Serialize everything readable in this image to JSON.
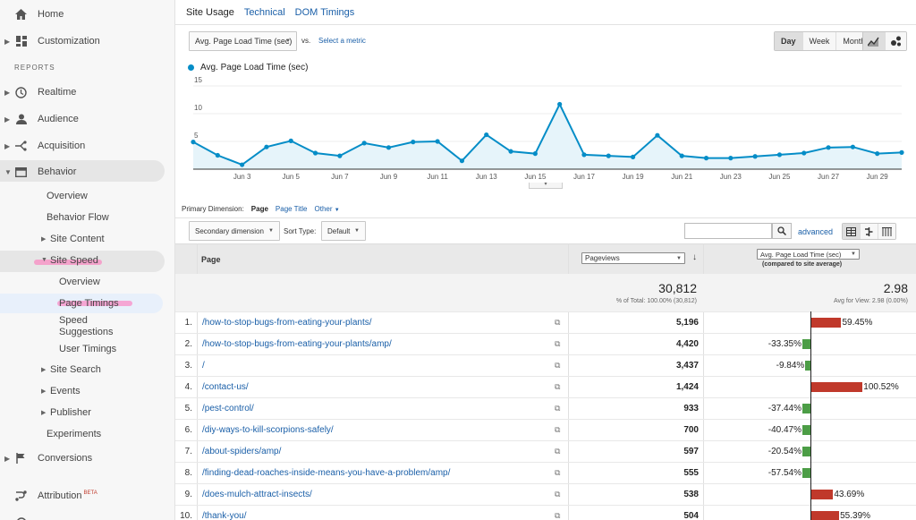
{
  "sidebar": {
    "home": "Home",
    "customization": "Customization",
    "reports_heading": "REPORTS",
    "realtime": "Realtime",
    "audience": "Audience",
    "acquisition": "Acquisition",
    "behavior": "Behavior",
    "behavior_sub": {
      "overview": "Overview",
      "behavior_flow": "Behavior Flow",
      "site_content": "Site Content",
      "site_speed": "Site Speed",
      "site_speed_sub": {
        "overview": "Overview",
        "page_timings": "Page Timings",
        "speed_suggestions_1": "Speed",
        "speed_suggestions_2": "Suggestions",
        "user_timings": "User Timings"
      },
      "site_search": "Site Search",
      "events": "Events",
      "publisher": "Publisher",
      "experiments": "Experiments"
    },
    "conversions": "Conversions",
    "attribution": "Attribution",
    "attribution_badge": "BETA"
  },
  "tabs": {
    "site_usage": "Site Usage",
    "technical": "Technical",
    "dom_timings": "DOM Timings"
  },
  "metric_select": "Avg. Page Load Time (sec)",
  "vs": "vs.",
  "select_metric": "Select a metric",
  "period": {
    "day": "Day",
    "week": "Week",
    "month": "Month"
  },
  "colors": {
    "series": "#058dc7",
    "area": "#e6f4fa",
    "neg_bar": "#4c9d46",
    "pos_bar": "#c0392b",
    "link": "#1a5fa8"
  },
  "chart_data": {
    "type": "line",
    "series": [
      {
        "name": "Avg. Page Load Time (sec)",
        "values": [
          4.9,
          2.5,
          0.8,
          4.0,
          5.1,
          2.9,
          2.4,
          4.7,
          3.9,
          4.9,
          5.0,
          1.5,
          6.2,
          3.2,
          2.8,
          11.7,
          2.6,
          2.4,
          2.2,
          6.1,
          2.4,
          2.0,
          2.0,
          2.3,
          2.6,
          2.9,
          3.9,
          4.0,
          2.8,
          3.0
        ]
      }
    ],
    "x_tick_labels": [
      "Jun 3",
      "Jun 5",
      "Jun 7",
      "Jun 9",
      "Jun 11",
      "Jun 13",
      "Jun 15",
      "Jun 17",
      "Jun 19",
      "Jun 21",
      "Jun 23",
      "Jun 25",
      "Jun 27",
      "Jun 29"
    ],
    "x_tick_days": [
      3,
      5,
      7,
      9,
      11,
      13,
      15,
      17,
      19,
      21,
      23,
      25,
      27,
      29
    ],
    "x_start_day": 1,
    "y_ticks": [
      5,
      10,
      15
    ],
    "ylim": [
      0,
      15
    ]
  },
  "dimension": {
    "label": "Primary Dimension:",
    "page": "Page",
    "page_title": "Page Title",
    "other": "Other"
  },
  "controls": {
    "secondary": "Secondary dimension",
    "sort_type": "Sort Type:",
    "sort_value": "Default",
    "search_placeholder": "",
    "advanced": "advanced"
  },
  "table": {
    "col_page": "Page",
    "col_pageviews": "Pageviews",
    "col_metric": "Avg. Page Load Time (sec)",
    "col_metric_sub": "(compared to site average)",
    "total_pageviews": "30,812",
    "total_pageviews_note": "% of Total: 100.00% (30,812)",
    "total_metric": "2.98",
    "total_metric_note": "Avg for View: 2.98 (0.00%)",
    "rows": [
      {
        "idx": "1.",
        "page": "/how-to-stop-bugs-from-eating-your-plants/",
        "pageviews": "5,196",
        "pct": "59.45%",
        "value": 59.45
      },
      {
        "idx": "2.",
        "page": "/how-to-stop-bugs-from-eating-your-plants/amp/",
        "pageviews": "4,420",
        "pct": "-33.35%",
        "value": -33.35
      },
      {
        "idx": "3.",
        "page": "/",
        "pageviews": "3,437",
        "pct": "-9.84%",
        "value": -9.84
      },
      {
        "idx": "4.",
        "page": "/contact-us/",
        "pageviews": "1,424",
        "pct": "100.52%",
        "value": 100.52
      },
      {
        "idx": "5.",
        "page": "/pest-control/",
        "pageviews": "933",
        "pct": "-37.44%",
        "value": -37.44
      },
      {
        "idx": "6.",
        "page": "/diy-ways-to-kill-scorpions-safely/",
        "pageviews": "700",
        "pct": "-40.47%",
        "value": -40.47
      },
      {
        "idx": "7.",
        "page": "/about-spiders/amp/",
        "pageviews": "597",
        "pct": "-20.54%",
        "value": -20.54
      },
      {
        "idx": "8.",
        "page": "/finding-dead-roaches-inside-means-you-have-a-problem/amp/",
        "pageviews": "555",
        "pct": "-57.54%",
        "value": -57.54
      },
      {
        "idx": "9.",
        "page": "/does-mulch-attract-insects/",
        "pageviews": "538",
        "pct": "43.69%",
        "value": 43.69
      },
      {
        "idx": "10.",
        "page": "/thank-you/",
        "pageviews": "504",
        "pct": "55.39%",
        "value": 55.39
      }
    ]
  }
}
